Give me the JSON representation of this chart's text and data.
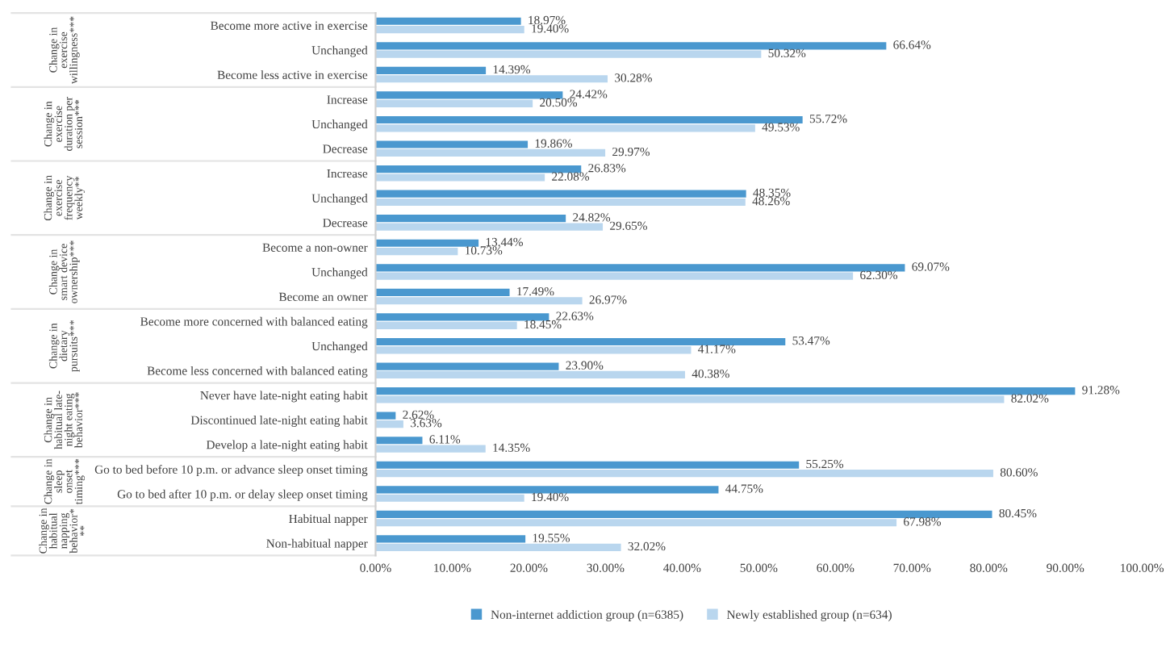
{
  "chart_data": {
    "type": "bar",
    "orientation": "horizontal",
    "categories": [
      "Become more active in exercise",
      "Unchanged",
      "Become less active in exercise",
      "Increase",
      "Unchanged",
      "Decrease",
      "Increase",
      "Unchanged",
      "Decrease",
      "Become a non-owner",
      "Unchanged",
      "Become an owner",
      "Become more concerned with balanced eating",
      "Unchanged",
      "Become less concerned with balanced eating",
      "Never have late-night eating habit",
      "Discontinued late-night eating habit",
      "Develop a late-night eating habit",
      "Go to bed before 10 p.m. or advance sleep onset timing",
      "Go to bed after 10 p.m. or delay sleep onset timing",
      "Habitual napper",
      "Non-habitual napper"
    ],
    "series": [
      {
        "name": "Non-internet addiction group (n=6385)",
        "color": "#4a98cf",
        "values": [
          18.97,
          66.64,
          14.39,
          24.42,
          55.72,
          19.86,
          26.83,
          48.35,
          24.82,
          13.44,
          69.07,
          17.49,
          22.63,
          53.47,
          23.9,
          91.28,
          2.62,
          6.11,
          55.25,
          44.75,
          80.45,
          19.55
        ],
        "value_labels": [
          "18.97%",
          "66.64%",
          "14.39%",
          "24.42%",
          "55.72%",
          "19.86%",
          "26.83%",
          "48.35%",
          "24.82%",
          "13.44%",
          "69.07%",
          "17.49%",
          "22.63%",
          "53.47%",
          "23.90%",
          "91.28%",
          "2.62%",
          "6.11%",
          "55.25%",
          "44.75%",
          "80.45%",
          "19.55%"
        ]
      },
      {
        "name": "Newly established group (n=634)",
        "color": "#b9d6ee",
        "values": [
          19.4,
          50.32,
          30.28,
          20.5,
          49.53,
          29.97,
          22.08,
          48.26,
          29.65,
          10.73,
          62.3,
          26.97,
          18.45,
          41.17,
          40.38,
          82.02,
          3.63,
          14.35,
          80.6,
          19.4,
          67.98,
          32.02
        ],
        "value_labels": [
          "19.40%",
          "50.32%",
          "30.28%",
          "20.50%",
          "49.53%",
          "29.97%",
          "22.08%",
          "48.26%",
          "29.65%",
          "10.73%",
          "62.30%",
          "26.97%",
          "18.45%",
          "41.17%",
          "40.38%",
          "82.02%",
          "3.63%",
          "14.35%",
          "80.60%",
          "19.40%",
          "67.98%",
          "32.02%"
        ]
      }
    ],
    "xlim": [
      0,
      100
    ],
    "xticks": [
      {
        "value": 0,
        "label": "0.00%"
      },
      {
        "value": 10,
        "label": "10.00%"
      },
      {
        "value": 20,
        "label": "20.00%"
      },
      {
        "value": 30,
        "label": "30.00%"
      },
      {
        "value": 40,
        "label": "40.00%"
      },
      {
        "value": 50,
        "label": "50.00%"
      },
      {
        "value": 60,
        "label": "60.00%"
      },
      {
        "value": 70,
        "label": "70.00%"
      },
      {
        "value": 80,
        "label": "80.00%"
      },
      {
        "value": 90,
        "label": "90.00%"
      },
      {
        "value": 100,
        "label": "100.00%"
      }
    ],
    "annotations": [
      "Change in\nexercise\nwillingness***",
      "Change in\nexercise\nduration per\nsession***",
      "Change in\nexercise\nfrequency\nweekly**",
      "Change in\nsmart device\nownership***",
      "Change in\ndietary\npursuits***",
      "Change in\nhabitual late-\nnight eating\nbehavior***",
      "Change in\nsleep\nonset\ntiming***",
      "Change in\nhabitual\nnapping\nbehavior*\n**"
    ],
    "grid": false,
    "legend": "bottom"
  }
}
